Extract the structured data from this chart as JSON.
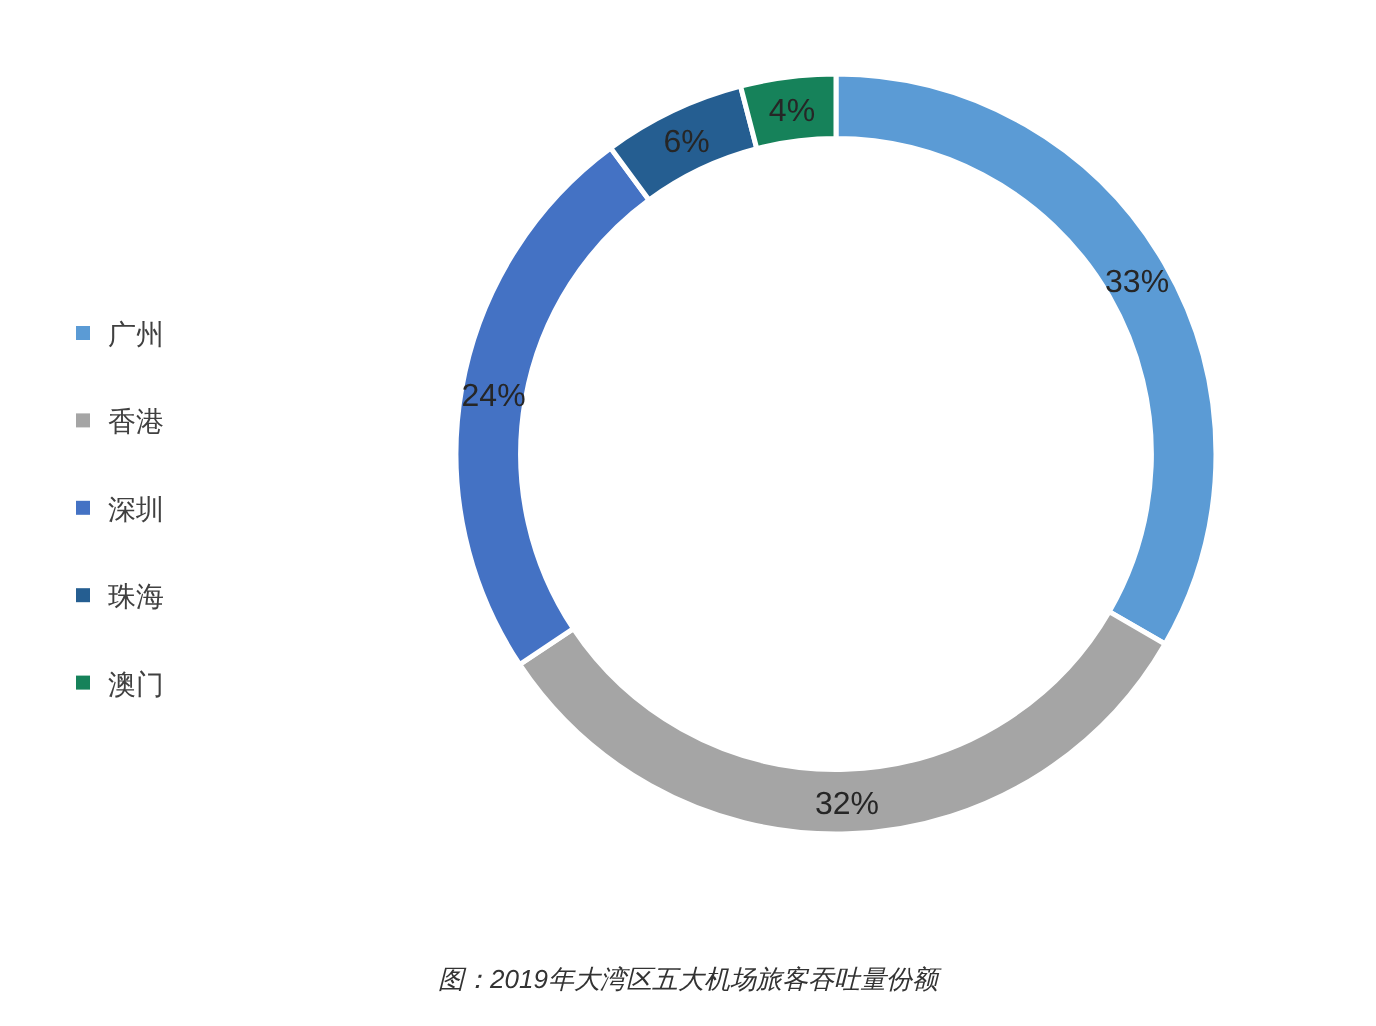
{
  "chart_data": {
    "type": "donut",
    "categories": [
      "广州",
      "香港",
      "深圳",
      "珠海",
      "澳门"
    ],
    "values": [
      33,
      32,
      24,
      6,
      4
    ],
    "colors": [
      "#5b9bd5",
      "#a5a5a5",
      "#4472c4",
      "#255e91",
      "#16825a"
    ],
    "value_labels": [
      "33%",
      "32%",
      "24%",
      "6%",
      "4%"
    ],
    "legend": "left",
    "annotations": [
      "图：2019年大湾区五大机场旅客吞吐量份额"
    ]
  }
}
